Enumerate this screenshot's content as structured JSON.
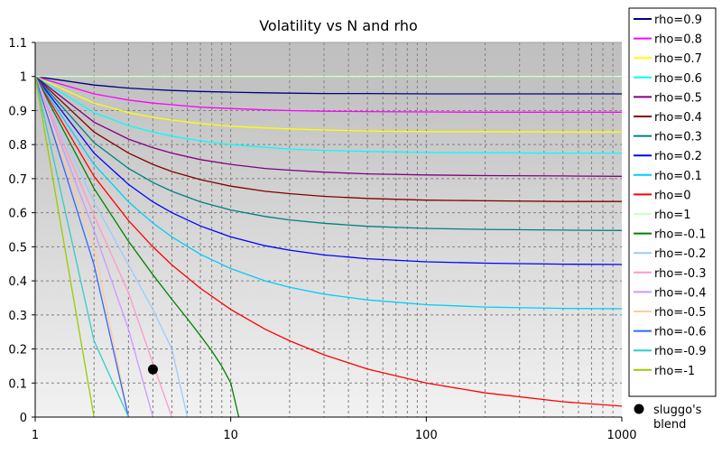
{
  "chart_data": {
    "type": "line",
    "title": "Volatility vs N and rho",
    "xlabel": "",
    "ylabel": "",
    "xscale": "log",
    "xlim": [
      1,
      1000
    ],
    "ylim": [
      0,
      1.1
    ],
    "x_tick_labels": [
      "1",
      "10",
      "100",
      "1000"
    ],
    "y_tick_labels": [
      "0",
      "0.1",
      "0.2",
      "0.3",
      "0.4",
      "0.5",
      "0.6",
      "0.7",
      "0.8",
      "0.9",
      "1",
      "1.1"
    ],
    "grid": true,
    "legend_position": "right",
    "background": "gray gradient",
    "series": [
      {
        "name": "rho=0.9",
        "color": "#000080",
        "x": [
          1,
          2,
          3,
          4,
          5,
          7,
          10,
          15,
          20,
          30,
          50,
          100,
          200,
          500,
          1000
        ],
        "y": [
          1,
          0.975,
          0.966,
          0.962,
          0.959,
          0.956,
          0.954,
          0.952,
          0.951,
          0.95,
          0.95,
          0.949,
          0.949,
          0.949,
          0.949
        ]
      },
      {
        "name": "rho=0.8",
        "color": "#ff00ff",
        "x": [
          1,
          2,
          3,
          4,
          5,
          7,
          10,
          15,
          20,
          30,
          50,
          100,
          200,
          500,
          1000
        ],
        "y": [
          1,
          0.949,
          0.931,
          0.922,
          0.917,
          0.91,
          0.906,
          0.902,
          0.9,
          0.898,
          0.897,
          0.896,
          0.895,
          0.895,
          0.895
        ]
      },
      {
        "name": "rho=0.7",
        "color": "#ffff00",
        "x": [
          1,
          2,
          3,
          4,
          5,
          7,
          10,
          15,
          20,
          30,
          50,
          100,
          200,
          500,
          1000
        ],
        "y": [
          1,
          0.922,
          0.894,
          0.88,
          0.872,
          0.862,
          0.854,
          0.849,
          0.846,
          0.843,
          0.84,
          0.838,
          0.838,
          0.837,
          0.837
        ]
      },
      {
        "name": "rho=0.6",
        "color": "#00ffff",
        "x": [
          1,
          2,
          3,
          4,
          5,
          7,
          10,
          15,
          20,
          30,
          50,
          100,
          200,
          500,
          1000
        ],
        "y": [
          1,
          0.894,
          0.856,
          0.837,
          0.825,
          0.811,
          0.8,
          0.792,
          0.787,
          0.783,
          0.78,
          0.777,
          0.776,
          0.775,
          0.775
        ]
      },
      {
        "name": "rho=0.5",
        "color": "#800080",
        "x": [
          1,
          2,
          3,
          4,
          5,
          7,
          10,
          15,
          20,
          30,
          50,
          100,
          200,
          500,
          1000
        ],
        "y": [
          1,
          0.866,
          0.816,
          0.791,
          0.775,
          0.756,
          0.742,
          0.73,
          0.725,
          0.719,
          0.714,
          0.711,
          0.709,
          0.708,
          0.707
        ]
      },
      {
        "name": "rho=0.4",
        "color": "#800000",
        "x": [
          1,
          2,
          3,
          4,
          5,
          7,
          10,
          15,
          20,
          30,
          50,
          100,
          200,
          500,
          1000
        ],
        "y": [
          1,
          0.837,
          0.775,
          0.742,
          0.721,
          0.697,
          0.678,
          0.663,
          0.656,
          0.648,
          0.642,
          0.637,
          0.635,
          0.633,
          0.633
        ]
      },
      {
        "name": "rho=0.3",
        "color": "#008080",
        "x": [
          1,
          2,
          3,
          4,
          5,
          7,
          10,
          15,
          20,
          30,
          50,
          100,
          200,
          500,
          1000
        ],
        "y": [
          1,
          0.806,
          0.73,
          0.689,
          0.663,
          0.632,
          0.608,
          0.589,
          0.579,
          0.569,
          0.56,
          0.554,
          0.551,
          0.549,
          0.548
        ]
      },
      {
        "name": "rho=0.2",
        "color": "#0000ff",
        "x": [
          1,
          2,
          3,
          4,
          5,
          7,
          10,
          15,
          20,
          30,
          50,
          100,
          200,
          500,
          1000
        ],
        "y": [
          1,
          0.775,
          0.683,
          0.632,
          0.6,
          0.561,
          0.529,
          0.503,
          0.49,
          0.476,
          0.465,
          0.456,
          0.452,
          0.449,
          0.448
        ]
      },
      {
        "name": "rho=0.1",
        "color": "#00ccff",
        "x": [
          1,
          2,
          3,
          4,
          5,
          7,
          10,
          15,
          20,
          30,
          50,
          100,
          200,
          500,
          1000
        ],
        "y": [
          1,
          0.742,
          0.632,
          0.57,
          0.529,
          0.478,
          0.436,
          0.4,
          0.381,
          0.361,
          0.344,
          0.33,
          0.323,
          0.319,
          0.318
        ]
      },
      {
        "name": "rho=0",
        "color": "#ff0000",
        "x": [
          1,
          2,
          3,
          4,
          5,
          7,
          10,
          15,
          20,
          30,
          50,
          100,
          200,
          500,
          1000
        ],
        "y": [
          1,
          0.707,
          0.577,
          0.5,
          0.447,
          0.378,
          0.316,
          0.258,
          0.224,
          0.183,
          0.141,
          0.1,
          0.071,
          0.045,
          0.032
        ]
      },
      {
        "name": "rho=1",
        "color": "#ccffcc",
        "x": [
          1,
          1000
        ],
        "y": [
          1,
          1
        ]
      },
      {
        "name": "rho=-0.1",
        "color": "#008000",
        "x": [
          1,
          2,
          3,
          4,
          5,
          6,
          7,
          8,
          9,
          10,
          11
        ],
        "y": [
          1,
          0.671,
          0.516,
          0.418,
          0.346,
          0.289,
          0.239,
          0.194,
          0.149,
          0.1,
          0
        ]
      },
      {
        "name": "rho=-0.2",
        "color": "#99ccff",
        "x": [
          1,
          2,
          3,
          4,
          5,
          6
        ],
        "y": [
          1,
          0.632,
          0.447,
          0.316,
          0.2,
          0
        ]
      },
      {
        "name": "rho=-0.3",
        "color": "#ff99cc",
        "x": [
          1,
          2,
          3,
          4,
          5
        ],
        "y": [
          1,
          0.592,
          0.365,
          0.158,
          0
        ]
      },
      {
        "name": "rho=-0.4",
        "color": "#cc99ff",
        "x": [
          1,
          2,
          3,
          4
        ],
        "y": [
          1,
          0.548,
          0.258,
          0
        ]
      },
      {
        "name": "rho=-0.5",
        "color": "#ffcc99",
        "x": [
          1,
          2,
          3
        ],
        "y": [
          1,
          0.5,
          0
        ]
      },
      {
        "name": "rho=-0.6",
        "color": "#3366ff",
        "x": [
          1,
          2,
          3
        ],
        "y": [
          1,
          0.447,
          0
        ]
      },
      {
        "name": "rho=-0.9",
        "color": "#33cccc",
        "x": [
          1,
          2,
          3
        ],
        "y": [
          1,
          0.224,
          0
        ]
      },
      {
        "name": "rho=-1",
        "color": "#99cc00",
        "x": [
          1,
          2
        ],
        "y": [
          1,
          0
        ]
      }
    ],
    "points": [
      {
        "name": "sluggo's blend",
        "label_line1": "sluggo's",
        "label_line2": "blend",
        "color": "#000000",
        "x": 4,
        "y": 0.14
      }
    ]
  }
}
